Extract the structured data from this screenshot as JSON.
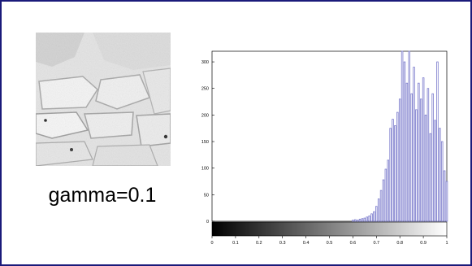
{
  "caption": "gamma=0.1",
  "image": {
    "subject": "stone-wall-photo",
    "style": "grayscale"
  },
  "colors": {
    "frame": "#1a1a7a",
    "bars": "#7b7bcc",
    "axis": "#000000"
  },
  "chart_data": {
    "type": "bar",
    "title": "",
    "xlabel": "",
    "ylabel": "",
    "xlim": [
      0,
      1
    ],
    "ylim": [
      0,
      320
    ],
    "xticks": [
      "0",
      "0.1",
      "0.2",
      "0.3",
      "0.4",
      "0.5",
      "0.6",
      "0.7",
      "0.8",
      "0.9",
      "1"
    ],
    "yticks": [
      "0",
      "50",
      "100",
      "150",
      "200",
      "250",
      "300"
    ],
    "colorbar": "black-to-white gradient under x axis",
    "bin_width": 0.01,
    "bins": [
      {
        "x": 0.6,
        "y": 2
      },
      {
        "x": 0.61,
        "y": 3
      },
      {
        "x": 0.62,
        "y": 2
      },
      {
        "x": 0.63,
        "y": 4
      },
      {
        "x": 0.64,
        "y": 5
      },
      {
        "x": 0.65,
        "y": 6
      },
      {
        "x": 0.66,
        "y": 8
      },
      {
        "x": 0.67,
        "y": 10
      },
      {
        "x": 0.68,
        "y": 14
      },
      {
        "x": 0.69,
        "y": 18
      },
      {
        "x": 0.7,
        "y": 28
      },
      {
        "x": 0.71,
        "y": 42
      },
      {
        "x": 0.72,
        "y": 58
      },
      {
        "x": 0.73,
        "y": 78
      },
      {
        "x": 0.74,
        "y": 98
      },
      {
        "x": 0.75,
        "y": 115
      },
      {
        "x": 0.76,
        "y": 175
      },
      {
        "x": 0.77,
        "y": 192
      },
      {
        "x": 0.78,
        "y": 180
      },
      {
        "x": 0.79,
        "y": 205
      },
      {
        "x": 0.8,
        "y": 230
      },
      {
        "x": 0.81,
        "y": 320
      },
      {
        "x": 0.82,
        "y": 300
      },
      {
        "x": 0.83,
        "y": 260
      },
      {
        "x": 0.84,
        "y": 320
      },
      {
        "x": 0.85,
        "y": 240
      },
      {
        "x": 0.86,
        "y": 290
      },
      {
        "x": 0.87,
        "y": 210
      },
      {
        "x": 0.88,
        "y": 260
      },
      {
        "x": 0.89,
        "y": 230
      },
      {
        "x": 0.9,
        "y": 270
      },
      {
        "x": 0.91,
        "y": 200
      },
      {
        "x": 0.92,
        "y": 250
      },
      {
        "x": 0.93,
        "y": 165
      },
      {
        "x": 0.94,
        "y": 240
      },
      {
        "x": 0.95,
        "y": 190
      },
      {
        "x": 0.96,
        "y": 300
      },
      {
        "x": 0.97,
        "y": 175
      },
      {
        "x": 0.98,
        "y": 150
      },
      {
        "x": 0.99,
        "y": 95
      },
      {
        "x": 1.0,
        "y": 75
      }
    ]
  }
}
